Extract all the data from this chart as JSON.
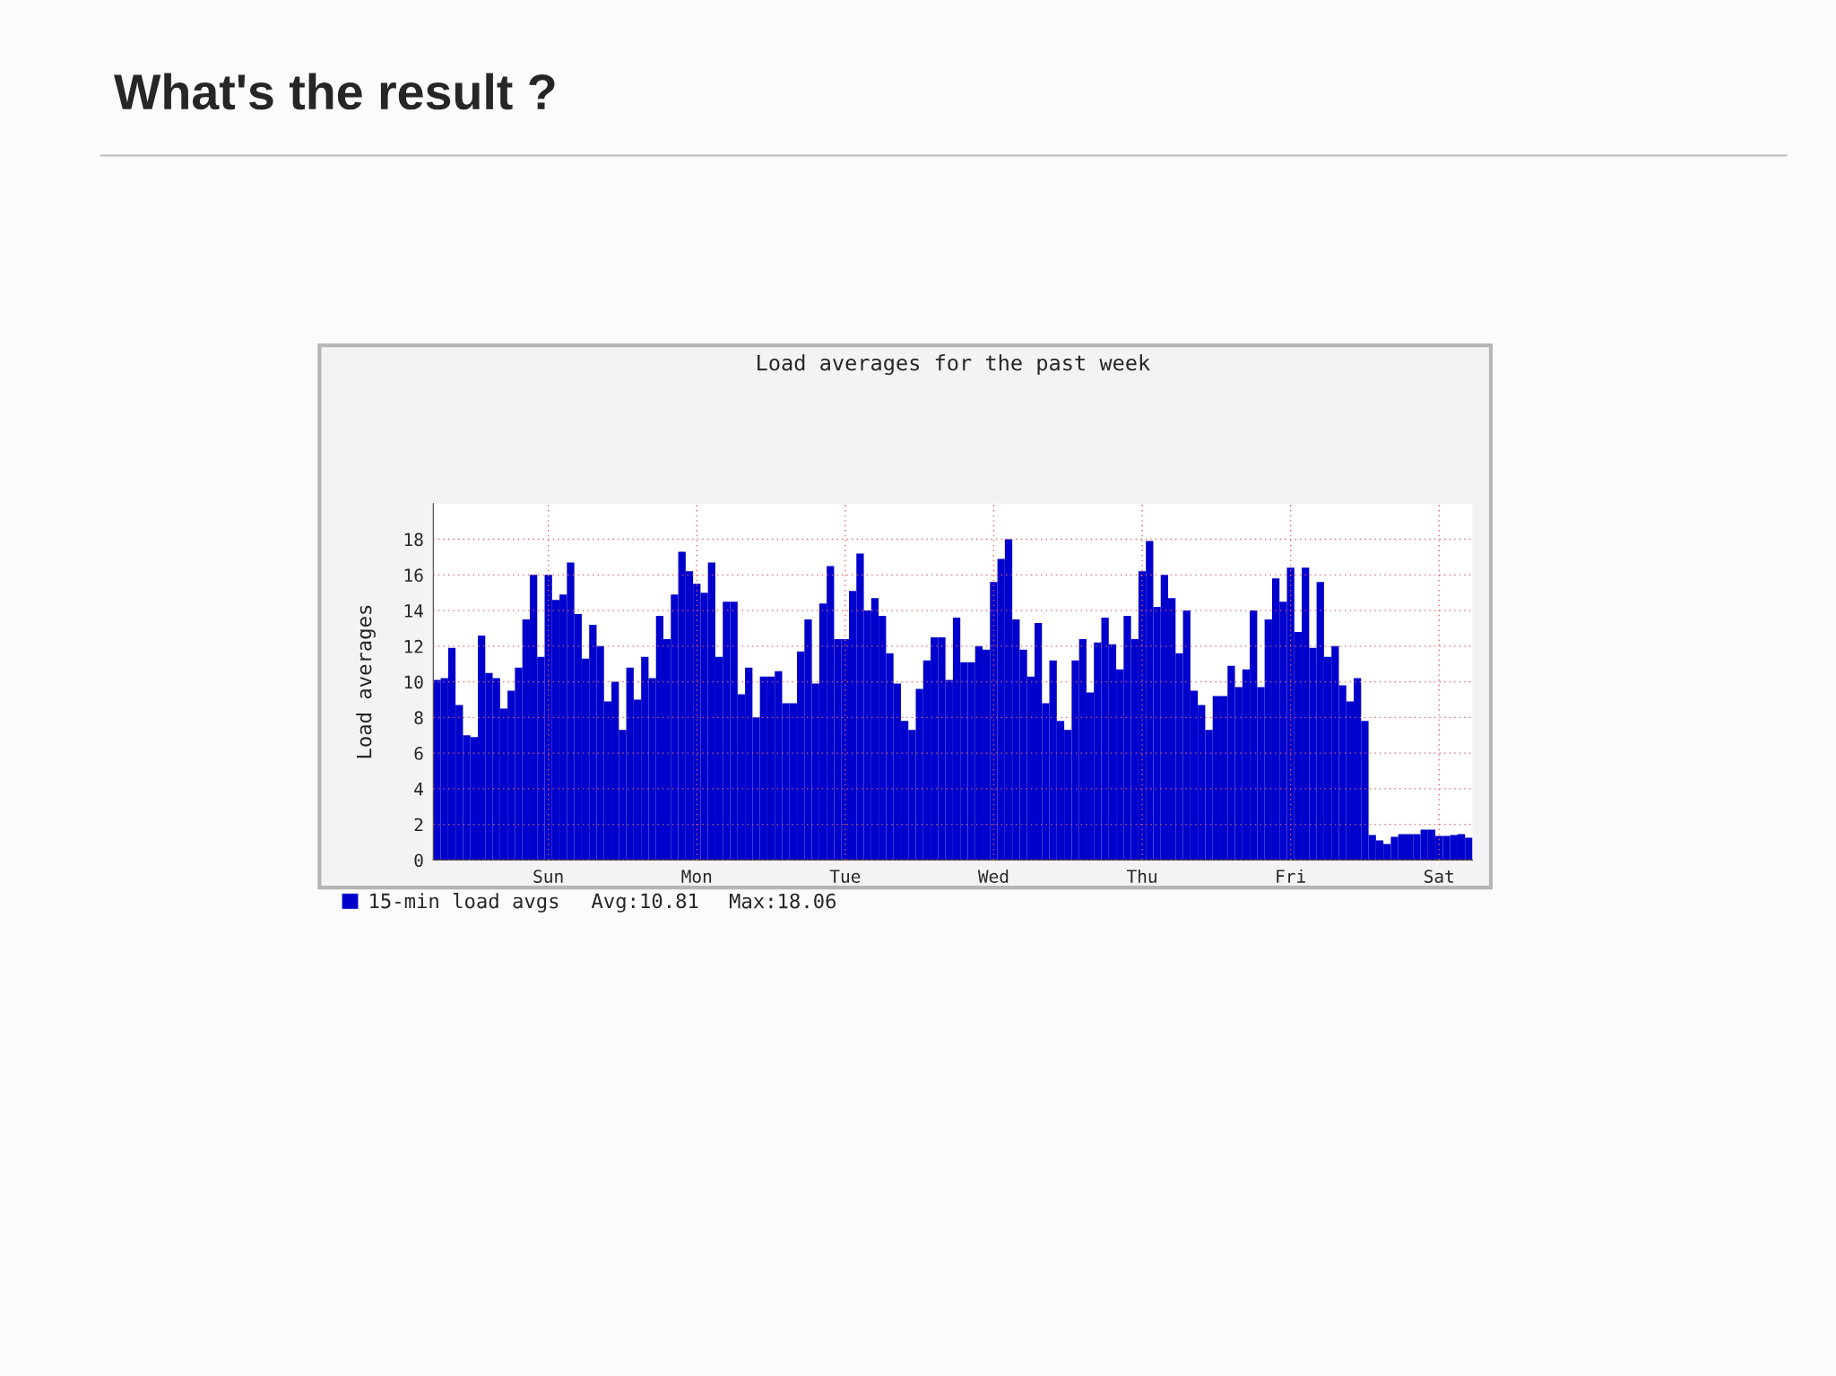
{
  "chart_data": {
    "type": "bar",
    "title": "What's the result ?",
    "subtitle": "Load averages for the past week",
    "ylabel": "Load averages",
    "categories": [
      null,
      null,
      null,
      null,
      null,
      null,
      null,
      null,
      null,
      null,
      null,
      null,
      null,
      null,
      null,
      "Sun",
      null,
      null,
      null,
      null,
      null,
      null,
      null,
      null,
      null,
      null,
      null,
      null,
      null,
      null,
      null,
      null,
      null,
      null,
      null,
      "Mon",
      null,
      null,
      null,
      null,
      null,
      null,
      null,
      null,
      null,
      null,
      null,
      null,
      null,
      null,
      null,
      null,
      null,
      null,
      null,
      "Tue",
      null,
      null,
      null,
      null,
      null,
      null,
      null,
      null,
      null,
      null,
      null,
      null,
      null,
      null,
      null,
      null,
      null,
      null,
      null,
      "Wed",
      null,
      null,
      null,
      null,
      null,
      null,
      null,
      null,
      null,
      null,
      null,
      null,
      null,
      null,
      null,
      null,
      null,
      null,
      null,
      "Thu",
      null,
      null,
      null,
      null,
      null,
      null,
      null,
      null,
      null,
      null,
      null,
      null,
      null,
      null,
      null,
      null,
      null,
      null,
      null,
      "Fri",
      null,
      null,
      null,
      null,
      null,
      null,
      null,
      null,
      null,
      null,
      null,
      null,
      null,
      null,
      null,
      null,
      null,
      null,
      null,
      "Sat",
      null,
      null,
      null,
      null
    ],
    "ylim": [
      0,
      20
    ],
    "yticks": [
      0,
      2,
      4,
      6,
      8,
      10,
      12,
      14,
      16,
      18
    ],
    "grid": true,
    "legend": "bottom left",
    "annotations": [
      "Avg:10.81",
      "Max:18.06"
    ],
    "series": [
      {
        "name": "15-min load avgs",
        "color": "#0000cc",
        "values": [
          10.1,
          10.2,
          11.9,
          8.7,
          7.0,
          6.9,
          12.6,
          10.5,
          10.2,
          8.5,
          9.5,
          10.8,
          13.5,
          16.0,
          11.4,
          16.0,
          14.6,
          14.9,
          16.7,
          13.8,
          11.3,
          13.2,
          12.0,
          8.9,
          10.0,
          7.3,
          10.8,
          9.0,
          11.4,
          10.2,
          13.7,
          12.4,
          14.9,
          17.3,
          16.2,
          15.5,
          15.0,
          16.7,
          11.4,
          14.5,
          14.5,
          9.3,
          10.8,
          8.0,
          10.3,
          10.3,
          10.6,
          8.8,
          8.8,
          11.7,
          13.5,
          9.9,
          14.4,
          16.5,
          12.4,
          12.4,
          15.1,
          17.2,
          14.0,
          14.7,
          13.7,
          11.6,
          9.9,
          7.8,
          7.3,
          9.6,
          11.2,
          12.5,
          12.5,
          10.1,
          13.6,
          11.1,
          11.1,
          12.0,
          11.8,
          15.6,
          16.9,
          18.0,
          13.5,
          11.8,
          10.3,
          13.3,
          8.8,
          11.2,
          7.8,
          7.3,
          11.2,
          12.4,
          9.4,
          12.2,
          13.6,
          12.1,
          10.7,
          13.7,
          12.4,
          16.2,
          17.9,
          14.2,
          16.0,
          14.7,
          11.6,
          14.0,
          9.5,
          8.7,
          7.3,
          9.2,
          9.2,
          10.9,
          9.7,
          10.7,
          14.0,
          9.7,
          13.5,
          15.8,
          14.5,
          16.4,
          12.8,
          16.4,
          11.9,
          15.6,
          11.4,
          12.0,
          9.8,
          8.9,
          10.2,
          7.8,
          1.4,
          1.1,
          0.9,
          1.3,
          1.45,
          1.45,
          1.45,
          1.7,
          1.7,
          1.35,
          1.35,
          1.4,
          1.45,
          1.25
        ]
      }
    ]
  }
}
